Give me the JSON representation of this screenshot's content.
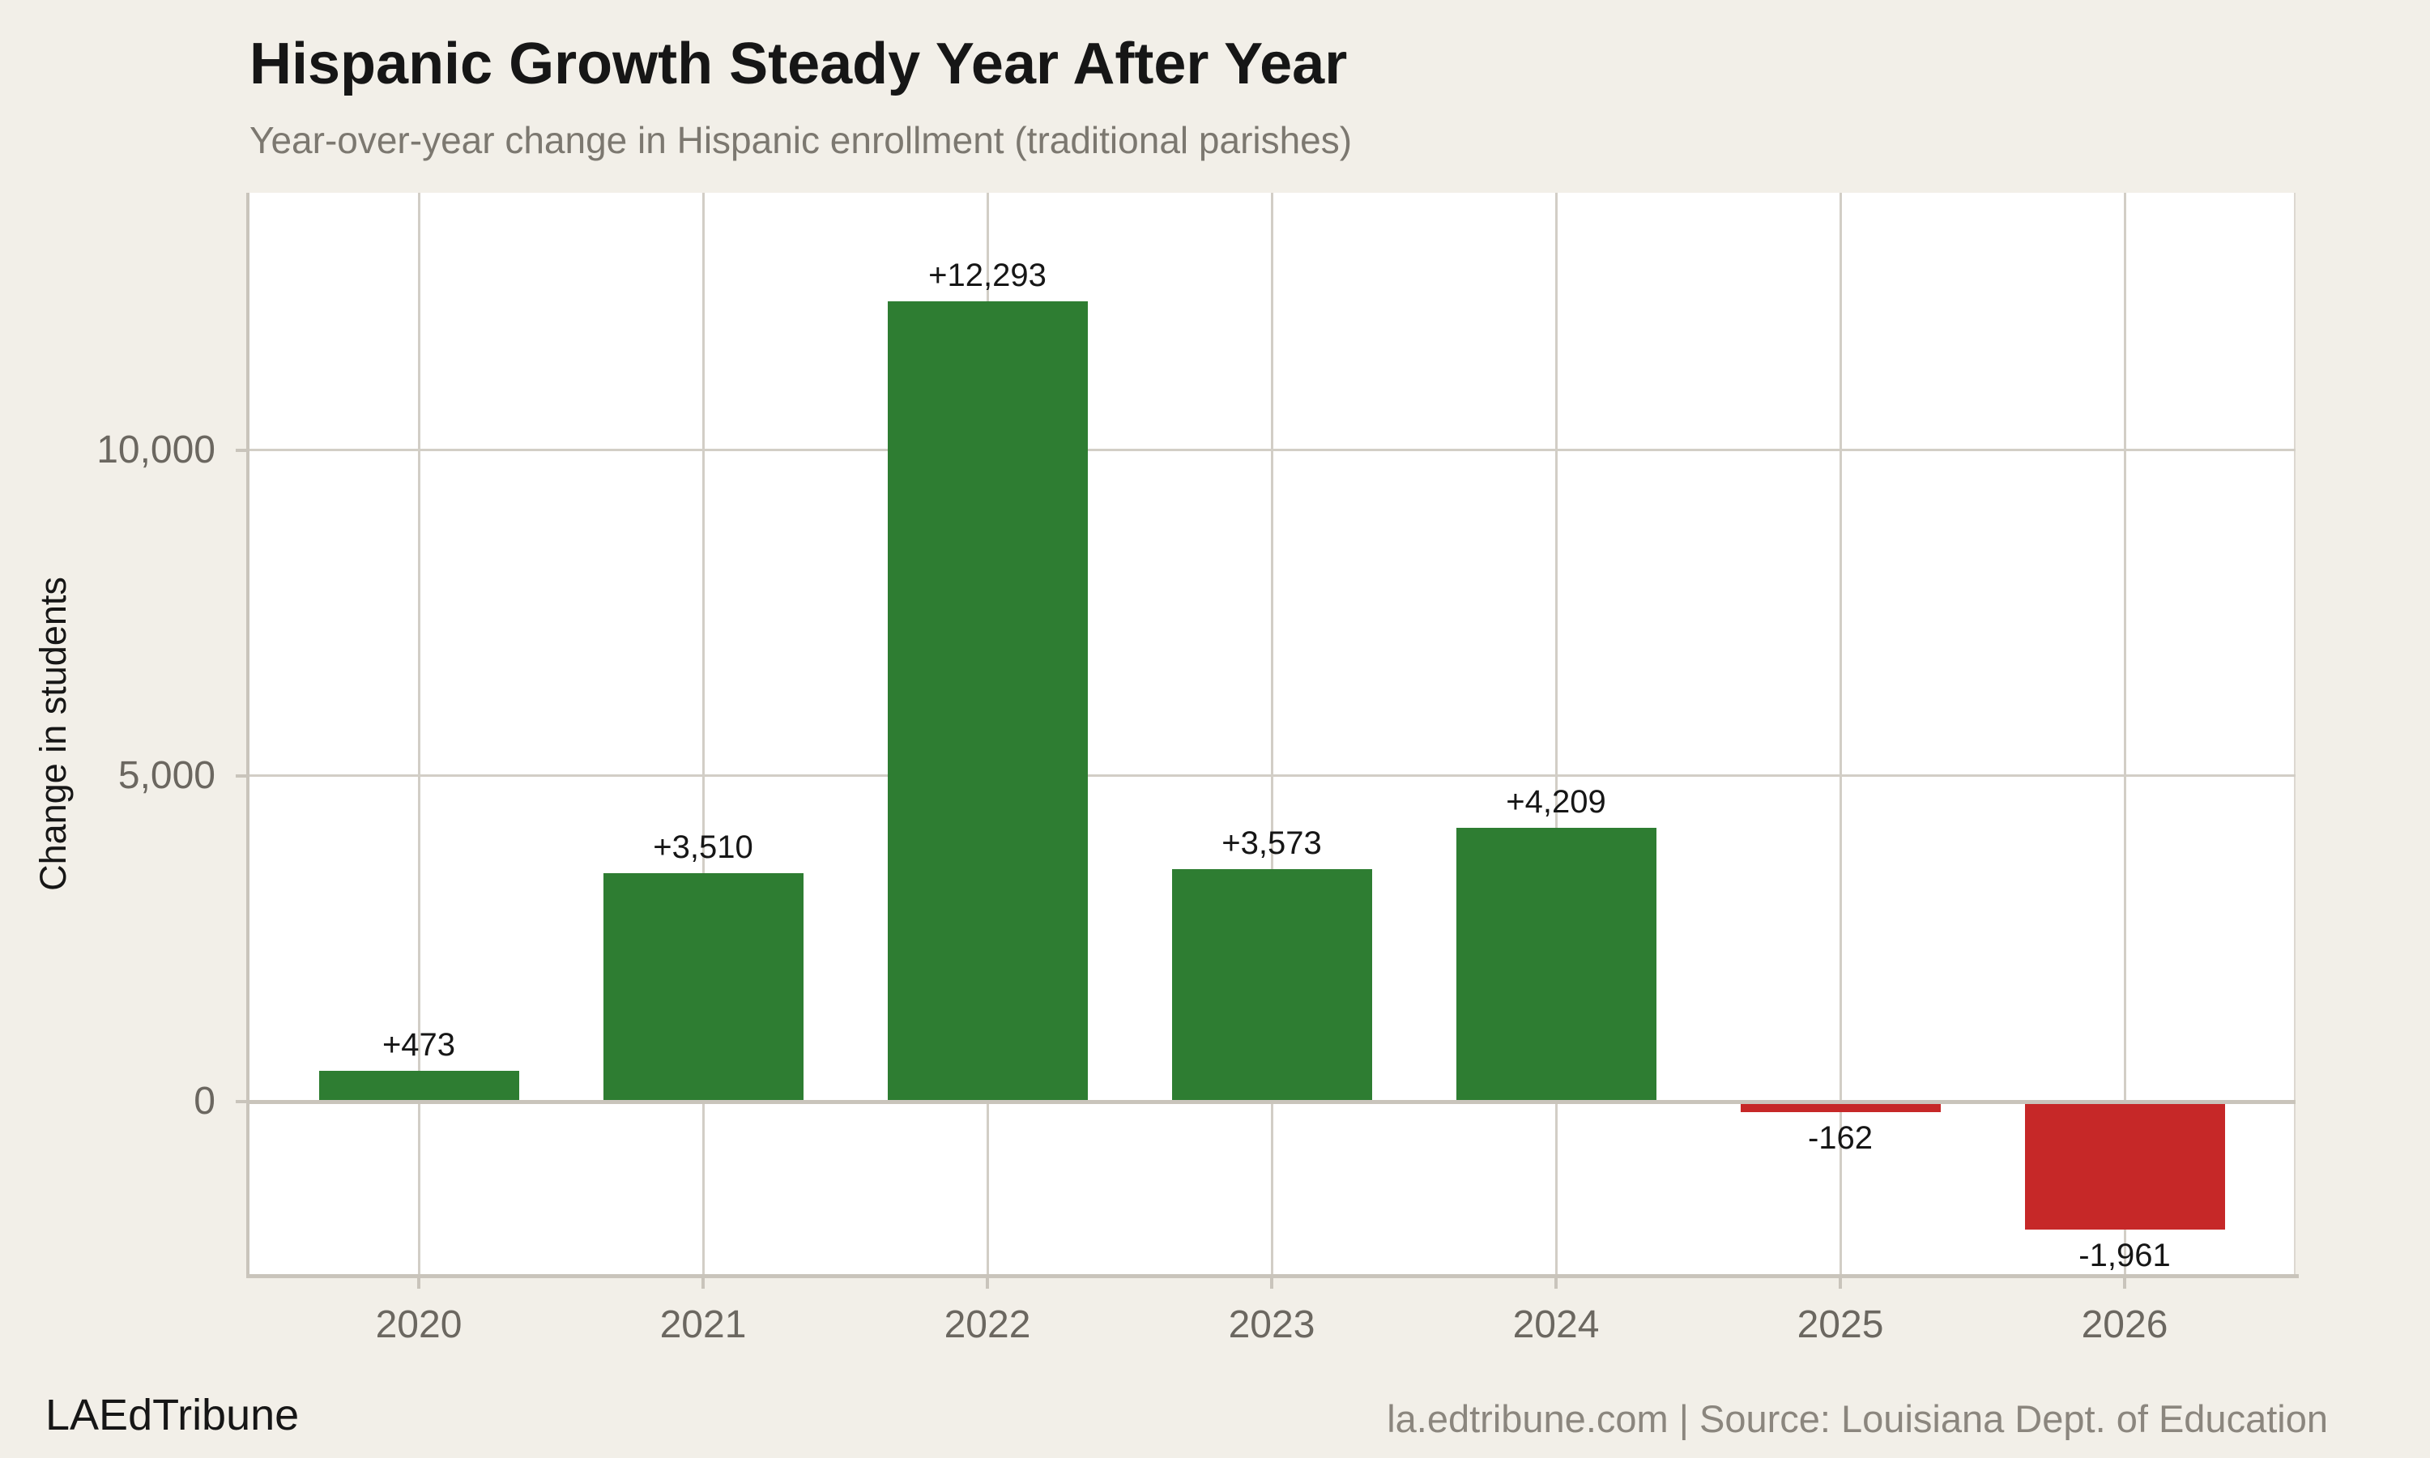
{
  "header": {
    "title": "Hispanic Growth Steady Year After Year",
    "subtitle": "Year-over-year change in Hispanic enrollment (traditional parishes)"
  },
  "footer": {
    "brand": "LAEdTribune",
    "source": "la.edtribune.com | Source: Louisiana Dept. of Education"
  },
  "chart_data": {
    "type": "bar",
    "title": "Hispanic Growth Steady Year After Year",
    "subtitle": "Year-over-year change in Hispanic enrollment (traditional parishes)",
    "categories": [
      "2020",
      "2021",
      "2022",
      "2023",
      "2024",
      "2025",
      "2026"
    ],
    "values": [
      473,
      3510,
      12293,
      3573,
      4209,
      -162,
      -1961
    ],
    "bar_labels": [
      "+473",
      "+3,510",
      "+12,293",
      "+3,573",
      "+4,209",
      "-162",
      "-1,961"
    ],
    "xlabel": "",
    "ylabel": "Change in students",
    "yticks": [
      0,
      5000,
      10000
    ],
    "ytick_labels": [
      "0",
      "5,000",
      "10,000"
    ],
    "ylim": [
      -2674,
      13955
    ],
    "grid": true,
    "legend": "none",
    "positive_color": "#2e7d32",
    "negative_color": "#c62828"
  },
  "colors": {
    "background": "#f2efe8",
    "plot_background": "#ffffff",
    "gridline": "#d2cec6",
    "axis_line": "#c9c4bb",
    "tick_label": "#6b6760",
    "subtitle_text": "#7c7870",
    "source_text": "#8b867e",
    "text": "#161616",
    "positive_bar": "#2e7d32",
    "negative_bar": "#c62828"
  }
}
